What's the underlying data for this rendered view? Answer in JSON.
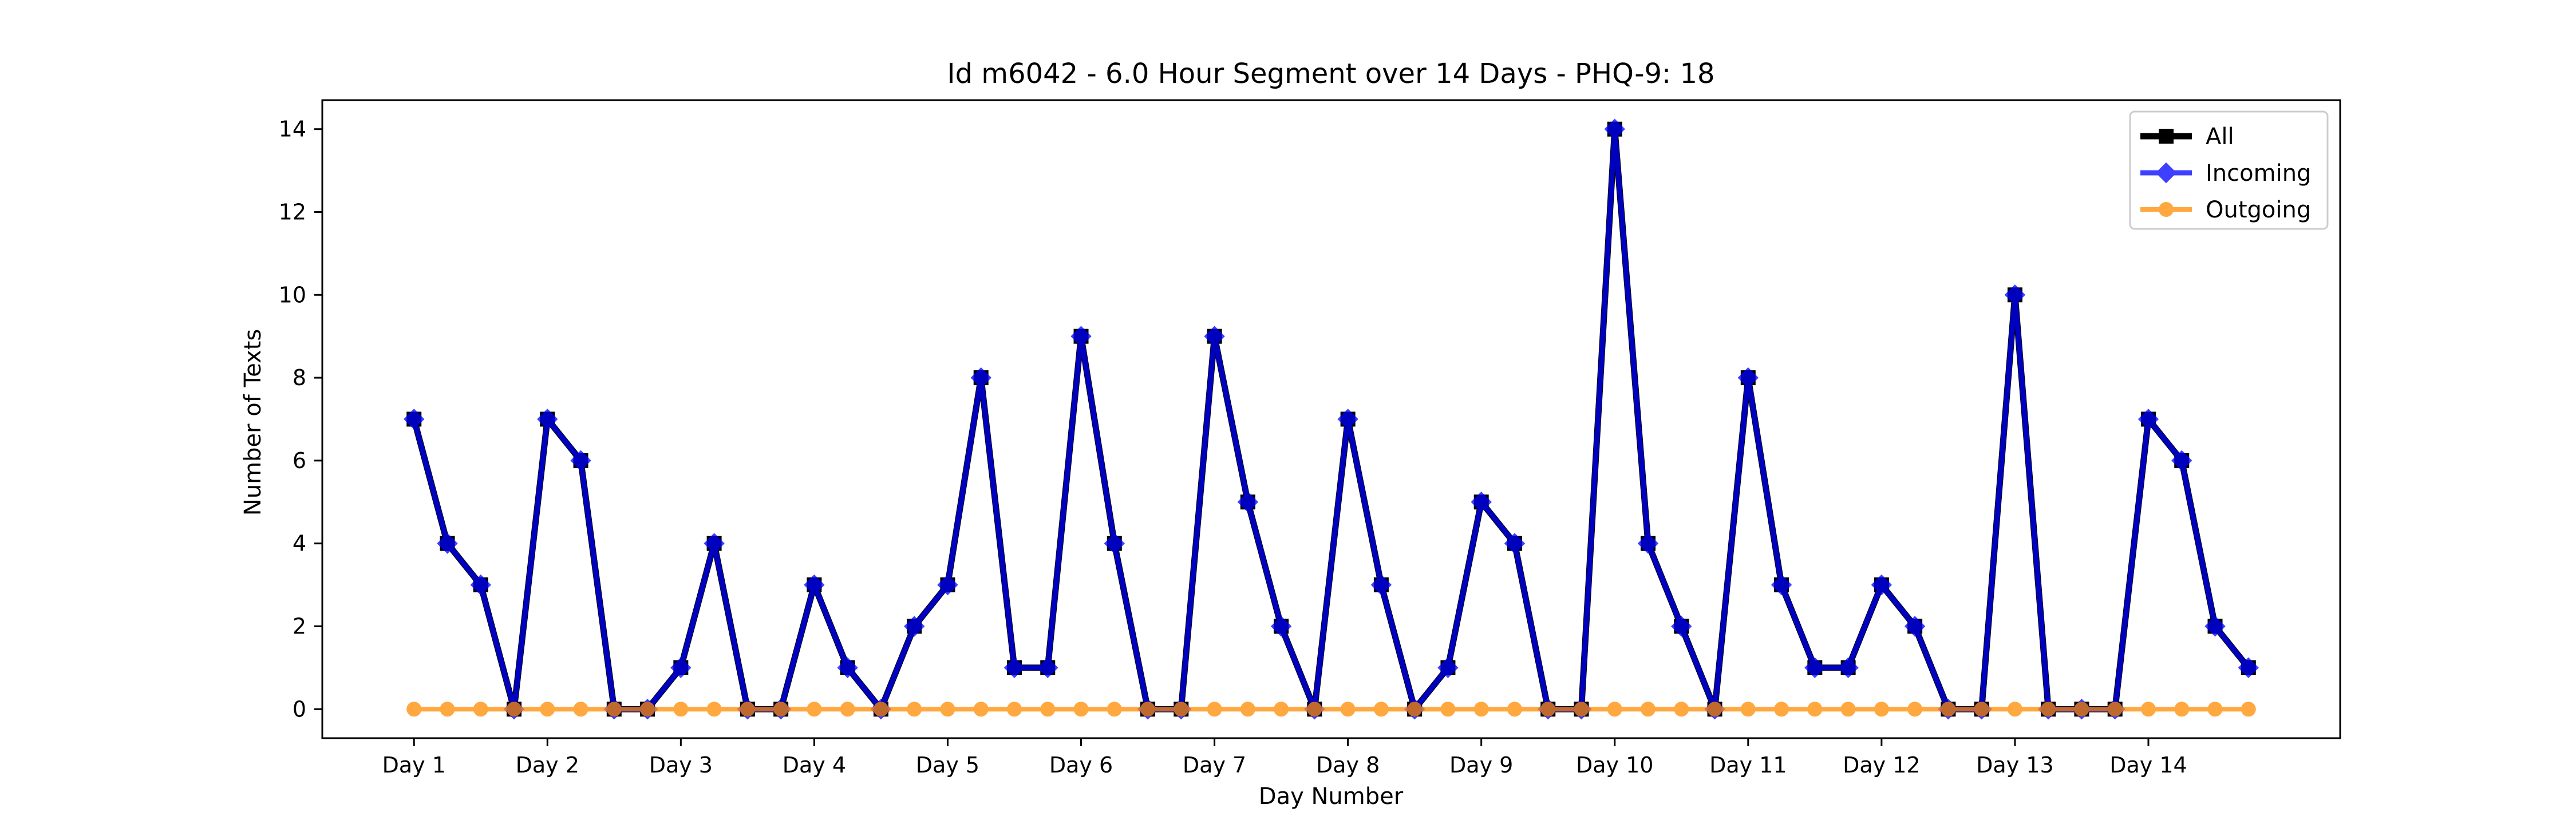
{
  "chart_data": {
    "type": "line",
    "title": "Id m6042 - 6.0 Hour Segment over 14 Days - PHQ-9: 18",
    "xlabel": "Day Number",
    "ylabel": "Number of Texts",
    "x": [
      0,
      1,
      2,
      3,
      4,
      5,
      6,
      7,
      8,
      9,
      10,
      11,
      12,
      13,
      14,
      15,
      16,
      17,
      18,
      19,
      20,
      21,
      22,
      23,
      24,
      25,
      26,
      27,
      28,
      29,
      30,
      31,
      32,
      33,
      34,
      35,
      36,
      37,
      38,
      39,
      40,
      41,
      42,
      43,
      44,
      45,
      46,
      47,
      48,
      49,
      50,
      51,
      52,
      53,
      54,
      55
    ],
    "xticks": [
      0,
      4,
      8,
      12,
      16,
      20,
      24,
      28,
      32,
      36,
      40,
      44,
      48,
      52
    ],
    "xticklabels": [
      "Day 1",
      "Day 2",
      "Day 3",
      "Day 4",
      "Day 5",
      "Day 6",
      "Day 7",
      "Day 8",
      "Day 9",
      "Day 10",
      "Day 11",
      "Day 12",
      "Day 13",
      "Day 14"
    ],
    "yticks": [
      0,
      2,
      4,
      6,
      8,
      10,
      12,
      14
    ],
    "ylim": [
      -0.7,
      14.7
    ],
    "xlim": [
      -2.75,
      57.75
    ],
    "grid": false,
    "legend_position": "top-right",
    "series": [
      {
        "name": "All",
        "color": "#000000",
        "marker": "square",
        "values": [
          7,
          4,
          3,
          0,
          7,
          6,
          0,
          0,
          1,
          4,
          0,
          0,
          3,
          1,
          0,
          2,
          3,
          8,
          1,
          1,
          9,
          4,
          0,
          0,
          9,
          5,
          2,
          0,
          7,
          3,
          0,
          1,
          5,
          4,
          0,
          0,
          14,
          4,
          2,
          0,
          8,
          3,
          1,
          1,
          3,
          2,
          0,
          0,
          10,
          0,
          0,
          0,
          7,
          6,
          2,
          1
        ]
      },
      {
        "name": "Incoming",
        "color": "#0000ff",
        "marker": "diamond",
        "values": [
          7,
          4,
          3,
          0,
          7,
          6,
          0,
          0,
          1,
          4,
          0,
          0,
          3,
          1,
          0,
          2,
          3,
          8,
          1,
          1,
          9,
          4,
          0,
          0,
          9,
          5,
          2,
          0,
          7,
          3,
          0,
          1,
          5,
          4,
          0,
          0,
          14,
          4,
          2,
          0,
          8,
          3,
          1,
          1,
          3,
          2,
          0,
          0,
          10,
          0,
          0,
          0,
          7,
          6,
          2,
          1
        ]
      },
      {
        "name": "Outgoing",
        "color": "#ff8c00",
        "marker": "circle",
        "values": [
          0,
          0,
          0,
          0,
          0,
          0,
          0,
          0,
          0,
          0,
          0,
          0,
          0,
          0,
          0,
          0,
          0,
          0,
          0,
          0,
          0,
          0,
          0,
          0,
          0,
          0,
          0,
          0,
          0,
          0,
          0,
          0,
          0,
          0,
          0,
          0,
          0,
          0,
          0,
          0,
          0,
          0,
          0,
          0,
          0,
          0,
          0,
          0,
          0,
          0,
          0,
          0,
          0,
          0,
          0,
          0
        ]
      }
    ]
  }
}
